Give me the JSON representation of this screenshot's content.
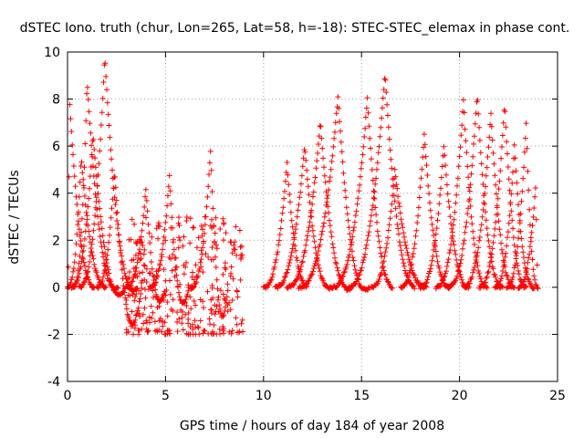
{
  "chart_data": {
    "type": "scatter",
    "title": "dSTEC Iono. truth (chur, Lon=265, Lat=58, h=-18): STEC-STEC_elemax in phase cont.",
    "xlabel": "GPS time / hours of day 184 of year 2008",
    "ylabel": "dSTEC  / TECUs",
    "xlim": [
      0,
      25
    ],
    "ylim": [
      -4,
      10
    ],
    "xticks": [
      0,
      5,
      10,
      15,
      20,
      25
    ],
    "yticks": [
      -4,
      -2,
      0,
      2,
      4,
      6,
      8,
      10
    ],
    "grid": true,
    "marker": "plus",
    "series_color": "#ff0000",
    "arcs": [
      {
        "start": 0.0,
        "peak_x": 0.1,
        "peak_y": 8.0,
        "end": 1.4,
        "tail": 0.0
      },
      {
        "start": 0.3,
        "peak_x": 1.0,
        "peak_y": 8.8,
        "end": 2.6,
        "tail": -0.3
      },
      {
        "start": 0.6,
        "peak_x": 1.9,
        "peak_y": 9.8,
        "end": 3.6,
        "tail": -0.5
      },
      {
        "start": 0.2,
        "peak_x": 1.3,
        "peak_y": 6.5,
        "end": 3.0,
        "tail": -0.8
      },
      {
        "start": 0.0,
        "peak_x": 0.7,
        "peak_y": 5.5,
        "end": 2.0,
        "tail": 0.0
      },
      {
        "start": 1.5,
        "peak_x": 2.4,
        "peak_y": 5.0,
        "end": 3.8,
        "tail": -2.2
      },
      {
        "start": 3.0,
        "peak_x": 4.0,
        "peak_y": 4.2,
        "end": 5.0,
        "tail": -1.0
      },
      {
        "start": 4.2,
        "peak_x": 5.2,
        "peak_y": 4.7,
        "end": 6.2,
        "tail": -1.2
      },
      {
        "start": 6.3,
        "peak_x": 7.3,
        "peak_y": 5.8,
        "end": 8.2,
        "tail": -1.9
      },
      {
        "start": 10.0,
        "peak_x": 11.2,
        "peak_y": 5.3,
        "end": 12.2,
        "tail": 0.2
      },
      {
        "start": 10.6,
        "peak_x": 12.1,
        "peak_y": 6.0,
        "end": 13.5,
        "tail": -0.2
      },
      {
        "start": 11.2,
        "peak_x": 12.9,
        "peak_y": 7.0,
        "end": 14.5,
        "tail": -0.3
      },
      {
        "start": 11.8,
        "peak_x": 13.8,
        "peak_y": 8.1,
        "end": 15.4,
        "tail": -0.4
      },
      {
        "start": 13.5,
        "peak_x": 15.3,
        "peak_y": 8.0,
        "end": 16.6,
        "tail": 0.1
      },
      {
        "start": 14.3,
        "peak_x": 16.2,
        "peak_y": 9.1,
        "end": 17.7,
        "tail": 0.2
      },
      {
        "start": 15.5,
        "peak_x": 16.7,
        "peak_y": 5.0,
        "end": 18.3,
        "tail": 0.0
      },
      {
        "start": 17.0,
        "peak_x": 18.2,
        "peak_y": 6.5,
        "end": 19.5,
        "tail": 0.0
      },
      {
        "start": 18.0,
        "peak_x": 19.2,
        "peak_y": 6.0,
        "end": 20.5,
        "tail": 0.0
      },
      {
        "start": 18.8,
        "peak_x": 20.2,
        "peak_y": 8.0,
        "end": 21.4,
        "tail": 0.0
      },
      {
        "start": 19.4,
        "peak_x": 20.9,
        "peak_y": 8.2,
        "end": 22.2,
        "tail": 0.0
      },
      {
        "start": 20.2,
        "peak_x": 21.6,
        "peak_y": 7.4,
        "end": 22.8,
        "tail": 0.0
      },
      {
        "start": 21.0,
        "peak_x": 22.3,
        "peak_y": 7.8,
        "end": 23.4,
        "tail": 0.0
      },
      {
        "start": 21.8,
        "peak_x": 22.8,
        "peak_y": 6.0,
        "end": 23.8,
        "tail": 0.0
      },
      {
        "start": 22.4,
        "peak_x": 23.4,
        "peak_y": 7.0,
        "end": 24.0,
        "tail": 0.0
      },
      {
        "start": 23.0,
        "peak_x": 23.9,
        "peak_y": 4.5,
        "end": 24.0,
        "tail": 0.5
      }
    ],
    "noise_region": {
      "x_start": 3.0,
      "x_end": 9.0,
      "y_min": -2.0,
      "y_max": 3.0
    }
  }
}
